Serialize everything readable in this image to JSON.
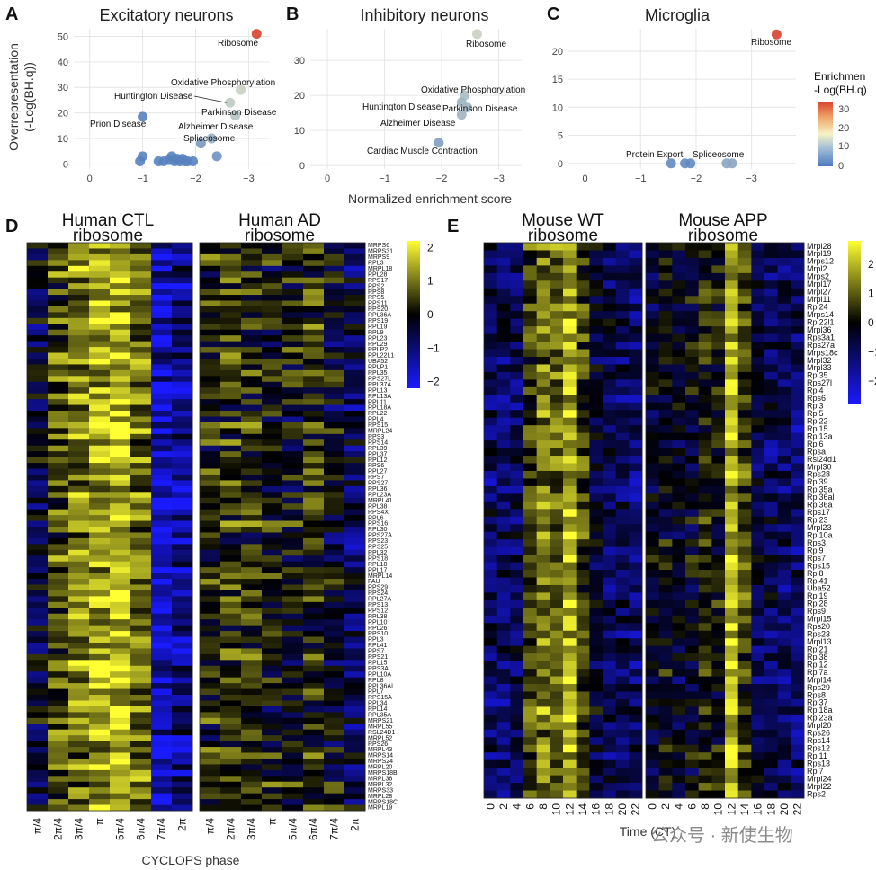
{
  "colors": {
    "enrich_low": "#4e7bbf",
    "enrich_mid": "#f6f2c4",
    "enrich_high": "#d8412f",
    "heat_low": "#1a1aff",
    "heat_mid": "#000000",
    "heat_high": "#ffff33"
  },
  "panels": {
    "A": {
      "letter": "A",
      "title": "Excitatory neurons"
    },
    "B": {
      "letter": "B",
      "title": "Inhibitory neurons"
    },
    "C": {
      "letter": "C",
      "title": "Microglia"
    },
    "D": {
      "letter": "D",
      "title_ctl": [
        "Human CTL",
        "ribosome"
      ],
      "title_ad": [
        "Human AD",
        "ribosome"
      ],
      "xlabel": "CYCLOPS phase"
    },
    "E": {
      "letter": "E",
      "title_wt": [
        "Mouse WT",
        "ribosome"
      ],
      "title_app": [
        "Mouse APP",
        "ribosome"
      ],
      "xlabel": "Time (CT)"
    }
  },
  "shared": {
    "ylabel_top": [
      "Overrepresentation",
      "(-Log(BH.q))"
    ],
    "xlabel_top": "Normalized enrichment score",
    "legend_title": [
      "Enrichmen",
      "-Log(BH.q)"
    ],
    "legend_ticks": [
      "30",
      "20",
      "10",
      "0"
    ]
  },
  "watermark": "公众号 · 新使生物",
  "chart_data": [
    {
      "type": "scatter",
      "title": "Excitatory neurons",
      "xlim": [
        0.3,
        -3.4
      ],
      "ylim": [
        -2,
        53
      ],
      "xticks": [
        0,
        -1,
        -2,
        -3
      ],
      "yticks": [
        0,
        10,
        20,
        30,
        40,
        50
      ],
      "points": [
        {
          "x": -3.15,
          "y": 51,
          "c": 33,
          "label": "Ribosome"
        },
        {
          "x": -2.85,
          "y": 29,
          "c": 12,
          "label": "Oxidative Phosphorylation"
        },
        {
          "x": -2.65,
          "y": 24,
          "c": 11,
          "label": "Huntington Disease"
        },
        {
          "x": -2.75,
          "y": 19,
          "c": 10,
          "label": "Parkinson Disease"
        },
        {
          "x": -2.3,
          "y": 10,
          "c": 7,
          "label": "Alzheimer Disease"
        },
        {
          "x": -2.1,
          "y": 8,
          "c": 4,
          "label": "Spliceosome"
        },
        {
          "x": -1.0,
          "y": 18.5,
          "c": 1,
          "label": "Prion Disease"
        },
        {
          "x": -1.0,
          "y": 3,
          "c": 1
        },
        {
          "x": -0.95,
          "y": 1,
          "c": 1
        },
        {
          "x": -1.3,
          "y": 1,
          "c": 1
        },
        {
          "x": -1.4,
          "y": 1,
          "c": 1
        },
        {
          "x": -1.5,
          "y": 1.5,
          "c": 1
        },
        {
          "x": -1.55,
          "y": 3,
          "c": 1
        },
        {
          "x": -1.6,
          "y": 1,
          "c": 1
        },
        {
          "x": -1.65,
          "y": 2,
          "c": 1
        },
        {
          "x": -1.7,
          "y": 1,
          "c": 1
        },
        {
          "x": -1.75,
          "y": 2,
          "c": 1
        },
        {
          "x": -1.8,
          "y": 1,
          "c": 1
        },
        {
          "x": -1.85,
          "y": 1,
          "c": 1
        },
        {
          "x": -1.95,
          "y": 1,
          "c": 1
        },
        {
          "x": -2.4,
          "y": 3,
          "c": 3
        }
      ],
      "leaders": [
        [
          "Huntington Disease",
          -2.65,
          24
        ]
      ]
    },
    {
      "type": "scatter",
      "title": "Inhibitory neurons",
      "xlim": [
        0.3,
        -3.4
      ],
      "ylim": [
        -1,
        39
      ],
      "xticks": [
        0,
        -1,
        -2,
        -3
      ],
      "yticks": [
        0,
        10,
        20,
        30
      ],
      "points": [
        {
          "x": -2.62,
          "y": 37.5,
          "c": 12,
          "label": "Ribosome"
        },
        {
          "x": -2.4,
          "y": 20,
          "c": 9,
          "label": "Oxidative Phosphorylation"
        },
        {
          "x": -2.35,
          "y": 18,
          "c": 8,
          "label": "Huntington Disease"
        },
        {
          "x": -2.45,
          "y": 16.5,
          "c": 8,
          "label": "Parkinson Disease"
        },
        {
          "x": -2.35,
          "y": 14.5,
          "c": 8,
          "label": "Alzheimer Disease"
        },
        {
          "x": -1.95,
          "y": 6.5,
          "c": 5,
          "label": "Cardiac Muscle Contraction"
        }
      ]
    },
    {
      "type": "scatter",
      "title": "Microglia",
      "xlim": [
        0.3,
        -3.8
      ],
      "ylim": [
        -1,
        24
      ],
      "xticks": [
        0,
        -1,
        -2,
        -3
      ],
      "yticks": [
        0,
        5,
        10,
        15,
        20
      ],
      "points": [
        {
          "x": -3.45,
          "y": 23,
          "c": 33,
          "label": "Ribosome"
        },
        {
          "x": -1.55,
          "y": 0,
          "c": 2,
          "label": "Protein Export"
        },
        {
          "x": -1.8,
          "y": 0,
          "c": 2
        },
        {
          "x": -1.9,
          "y": 0,
          "c": 2,
          "label": "Spliceosome"
        },
        {
          "x": -2.55,
          "y": 0,
          "c": 6
        },
        {
          "x": -2.65,
          "y": 0,
          "c": 6
        }
      ]
    },
    {
      "type": "heatmap",
      "title": "Human CTL ribosome / Human AD ribosome",
      "xlabel": "CYCLOPS phase",
      "x_ticks": [
        "π/4",
        "2π/4",
        "3π/4",
        "π",
        "5π/4",
        "6π/4",
        "7π/4",
        "2π"
      ],
      "color_range": [
        -2,
        2
      ],
      "colorbar_ticks": [
        2,
        1,
        0,
        -1,
        -2
      ],
      "rows": [
        "MRPS6",
        "MRPS31",
        "MRPS9",
        "RPL3",
        "MRPL18",
        "RPL28",
        "RPS17",
        "RPS2",
        "RPS8",
        "RPS5",
        "RPS11",
        "RPS20",
        "RPL36A",
        "RPS19",
        "RPL19",
        "RPL9",
        "RPL23",
        "RPL29",
        "RPLP2",
        "RPL22L1",
        "UBA52",
        "RPLP1",
        "RPL35",
        "RPS27L",
        "RPL37A",
        "RPL13",
        "RPL13A",
        "RPL11",
        "RPL18A",
        "RPL22",
        "RPL4",
        "RPS15",
        "MRPL24",
        "RPS3",
        "RPS14",
        "RPL39",
        "RPL37",
        "RPL12",
        "RPS6",
        "RPL27",
        "RPS7",
        "RPS27",
        "RPL36",
        "RPL23A",
        "MRPL41",
        "RPL38",
        "RPS4X",
        "RPL6",
        "RPS16",
        "RPL30",
        "RPS27A",
        "RPS23",
        "RPS25",
        "RPL32",
        "RPS18",
        "RPL18",
        "RPL17",
        "MRPL14",
        "FAU",
        "RPS29",
        "RPS24",
        "RPL27A",
        "RPS13",
        "RPS12",
        "RPL38",
        "RPL10",
        "RPL26",
        "RPS10",
        "RPL3",
        "RPL41",
        "RPS7",
        "RPS21",
        "RPL15",
        "RPS3A",
        "RPL10A",
        "RPL8",
        "RPL36AL",
        "RPL7",
        "RPS15A",
        "RPL34",
        "RPL14",
        "RPL35A",
        "MRPS21",
        "MRPL55",
        "RSL24D1",
        "MRPL52",
        "RPS26",
        "MRPL43",
        "MRPS14",
        "MRPS24",
        "MRPL20",
        "MRPS18B",
        "MRPL36",
        "MRPL32",
        "MRPS33",
        "MRPL28",
        "MRPS18C",
        "MRPL19"
      ],
      "panels": [
        {
          "name": "Human CTL ribosome",
          "column_mean": [
            -0.4,
            0.6,
            1.0,
            1.3,
            1.5,
            0.9,
            -1.6,
            -1.1
          ]
        },
        {
          "name": "Human AD ribosome",
          "column_mean": [
            0.2,
            0.4,
            0.3,
            0.1,
            0.0,
            0.3,
            -0.2,
            -0.6
          ]
        }
      ]
    },
    {
      "type": "heatmap",
      "title": "Mouse WT ribosome / Mouse APP ribosome",
      "xlabel": "Time (CT)",
      "x_ticks": [
        "0",
        "2",
        "4",
        "6",
        "8",
        "10",
        "12",
        "14",
        "16",
        "18",
        "20",
        "22"
      ],
      "color_range": [
        -2.5,
        2.5
      ],
      "colorbar_ticks": [
        2,
        1,
        0,
        -1,
        -2
      ],
      "rows": [
        "Mrpl28",
        "Mrpl19",
        "Mrps12",
        "Mrpl2",
        "Mrps2",
        "Mrpl17",
        "Mrpl27",
        "Mrpl11",
        "Rpl24",
        "Mrps14",
        "Rpl22l1",
        "Mrpl36",
        "Rps3a1",
        "Rps27a",
        "Mrps18c",
        "Mrpl32",
        "Mrpl33",
        "Rpl35",
        "Rps27l",
        "Rpl4",
        "Rps6",
        "Rpl3",
        "Rpl5",
        "Rpl22",
        "Rpl15",
        "Rpl13a",
        "Rpl6",
        "Rpsa",
        "Rsl24d1",
        "Mrpl30",
        "Rps28",
        "Rpl39",
        "Rpl35a",
        "Rpl36al",
        "Rpl36a",
        "Rps17",
        "Rpl23",
        "Mrpl23",
        "Rpl10a",
        "Rps3",
        "Rpl9",
        "Rps7",
        "Rps15",
        "Rpl8",
        "Rpl41",
        "Uba52",
        "Rpl19",
        "Rpl28",
        "Rps9",
        "Mrpl15",
        "Rps20",
        "Rps23",
        "Mrpl13",
        "Rpl21",
        "Rpl38",
        "Rpl12",
        "Rpl7a",
        "Mrpl14",
        "Rps29",
        "Rps8",
        "Rpl37",
        "Rpl18a",
        "Rpl23a",
        "Mrpl20",
        "Rps26",
        "Rps14",
        "Rps12",
        "Rpl11",
        "Rps13",
        "Rpl7",
        "Mrpl24",
        "Mrpl22",
        "Rps2"
      ],
      "panels": [
        {
          "name": "Mouse WT ribosome",
          "column_mean": [
            -0.9,
            -0.9,
            -0.8,
            0.6,
            1.2,
            1.0,
            1.8,
            0.6,
            -0.5,
            -0.8,
            -0.9,
            -1.0
          ]
        },
        {
          "name": "Mouse APP ribosome",
          "column_mean": [
            -0.3,
            0.0,
            -0.3,
            -0.2,
            0.4,
            0.1,
            1.8,
            0.7,
            -0.6,
            -0.8,
            -0.9,
            -1.0
          ]
        }
      ]
    }
  ]
}
